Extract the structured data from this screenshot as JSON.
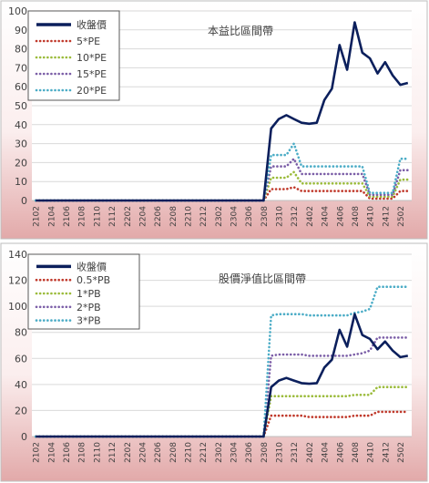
{
  "chart_data": [
    {
      "type": "line",
      "title": "本益比區間帶",
      "xlabel": "",
      "ylabel": "",
      "ylim": [
        0,
        100
      ],
      "yticks": [
        0,
        10,
        20,
        30,
        40,
        50,
        60,
        70,
        80,
        90,
        100
      ],
      "grid": "horizontal",
      "legend_position": "top-left",
      "x_tick_labels": [
        "2102",
        "2104",
        "2106",
        "2108",
        "2110",
        "2112",
        "2202",
        "2204",
        "2206",
        "2208",
        "2210",
        "2212",
        "2302",
        "2304",
        "2306",
        "2308",
        "2310",
        "2312",
        "2402",
        "2404",
        "2406",
        "2408",
        "2410",
        "2412",
        "2502"
      ],
      "x": [
        "2102",
        "2103",
        "2104",
        "2105",
        "2106",
        "2107",
        "2108",
        "2109",
        "2110",
        "2111",
        "2112",
        "2201",
        "2202",
        "2203",
        "2204",
        "2205",
        "2206",
        "2207",
        "2208",
        "2209",
        "2210",
        "2211",
        "2212",
        "2301",
        "2302",
        "2303",
        "2304",
        "2305",
        "2306",
        "2307",
        "2308",
        "2309",
        "2310",
        "2311",
        "2312",
        "2401",
        "2402",
        "2403",
        "2404",
        "2405",
        "2406",
        "2407",
        "2408",
        "2409",
        "2410",
        "2411",
        "2412",
        "2501",
        "2502",
        "2503"
      ],
      "series": [
        {
          "name": "收盤價",
          "color": "#0b1f5c",
          "style": "solid",
          "values": [
            0,
            0,
            0,
            0,
            0,
            0,
            0,
            0,
            0,
            0,
            0,
            0,
            0,
            0,
            0,
            0,
            0,
            0,
            0,
            0,
            0,
            0,
            0,
            0,
            0,
            0,
            0,
            0,
            0,
            0,
            0,
            38,
            43,
            45,
            43,
            41,
            40.5,
            41,
            53,
            59,
            82,
            69,
            94,
            78,
            75,
            67,
            73,
            66,
            61,
            62
          ]
        },
        {
          "name": "5*PE",
          "color": "#c0392b",
          "style": "dotted",
          "values": [
            0,
            0,
            0,
            0,
            0,
            0,
            0,
            0,
            0,
            0,
            0,
            0,
            0,
            0,
            0,
            0,
            0,
            0,
            0,
            0,
            0,
            0,
            0,
            0,
            0,
            0,
            0,
            0,
            0,
            0,
            0,
            6,
            6,
            6,
            7,
            5,
            5,
            5,
            5,
            5,
            5,
            5,
            5,
            5,
            1,
            1,
            1,
            1,
            5,
            5
          ]
        },
        {
          "name": "10*PE",
          "color": "#9bbb3b",
          "style": "dotted",
          "values": [
            0,
            0,
            0,
            0,
            0,
            0,
            0,
            0,
            0,
            0,
            0,
            0,
            0,
            0,
            0,
            0,
            0,
            0,
            0,
            0,
            0,
            0,
            0,
            0,
            0,
            0,
            0,
            0,
            0,
            0,
            0,
            12,
            12,
            12,
            15,
            9,
            9,
            9,
            9,
            9,
            9,
            9,
            9,
            9,
            2,
            2,
            2,
            2,
            11,
            11
          ]
        },
        {
          "name": "15*PE",
          "color": "#7b5ea7",
          "style": "dotted",
          "values": [
            0,
            0,
            0,
            0,
            0,
            0,
            0,
            0,
            0,
            0,
            0,
            0,
            0,
            0,
            0,
            0,
            0,
            0,
            0,
            0,
            0,
            0,
            0,
            0,
            0,
            0,
            0,
            0,
            0,
            0,
            0,
            18,
            18,
            18,
            22,
            14,
            14,
            14,
            14,
            14,
            14,
            14,
            14,
            14,
            3,
            3,
            3,
            3,
            16,
            16
          ]
        },
        {
          "name": "20*PE",
          "color": "#4bacc6",
          "style": "dotted",
          "values": [
            0,
            0,
            0,
            0,
            0,
            0,
            0,
            0,
            0,
            0,
            0,
            0,
            0,
            0,
            0,
            0,
            0,
            0,
            0,
            0,
            0,
            0,
            0,
            0,
            0,
            0,
            0,
            0,
            0,
            0,
            0,
            24,
            24,
            24,
            30,
            18,
            18,
            18,
            18,
            18,
            18,
            18,
            18,
            18,
            4,
            4,
            4,
            4,
            22,
            22
          ]
        }
      ]
    },
    {
      "type": "line",
      "title": "股價淨值比區間帶",
      "xlabel": "",
      "ylabel": "",
      "ylim": [
        0,
        140
      ],
      "yticks": [
        0,
        20,
        40,
        60,
        80,
        100,
        120,
        140
      ],
      "grid": "horizontal",
      "legend_position": "top-left",
      "x_tick_labels": [
        "2102",
        "2104",
        "2106",
        "2108",
        "2110",
        "2112",
        "2202",
        "2204",
        "2206",
        "2208",
        "2210",
        "2212",
        "2302",
        "2304",
        "2306",
        "2308",
        "2310",
        "2312",
        "2402",
        "2404",
        "2406",
        "2408",
        "2410",
        "2412",
        "2502"
      ],
      "x": [
        "2102",
        "2103",
        "2104",
        "2105",
        "2106",
        "2107",
        "2108",
        "2109",
        "2110",
        "2111",
        "2112",
        "2201",
        "2202",
        "2203",
        "2204",
        "2205",
        "2206",
        "2207",
        "2208",
        "2209",
        "2210",
        "2211",
        "2212",
        "2301",
        "2302",
        "2303",
        "2304",
        "2305",
        "2306",
        "2307",
        "2308",
        "2309",
        "2310",
        "2311",
        "2312",
        "2401",
        "2402",
        "2403",
        "2404",
        "2405",
        "2406",
        "2407",
        "2408",
        "2409",
        "2410",
        "2411",
        "2412",
        "2501",
        "2502",
        "2503"
      ],
      "series": [
        {
          "name": "收盤價",
          "color": "#0b1f5c",
          "style": "solid",
          "values": [
            0,
            0,
            0,
            0,
            0,
            0,
            0,
            0,
            0,
            0,
            0,
            0,
            0,
            0,
            0,
            0,
            0,
            0,
            0,
            0,
            0,
            0,
            0,
            0,
            0,
            0,
            0,
            0,
            0,
            0,
            0,
            38,
            43,
            45,
            43,
            41,
            40.5,
            41,
            53,
            59,
            82,
            69,
            94,
            78,
            75,
            67,
            73,
            66,
            61,
            62
          ]
        },
        {
          "name": "0.5*PB",
          "color": "#c0392b",
          "style": "dotted",
          "values": [
            0,
            0,
            0,
            0,
            0,
            0,
            0,
            0,
            0,
            0,
            0,
            0,
            0,
            0,
            0,
            0,
            0,
            0,
            0,
            0,
            0,
            0,
            0,
            0,
            0,
            0,
            0,
            0,
            0,
            0,
            0,
            16,
            16,
            16,
            16,
            16,
            15,
            15,
            15,
            15,
            15,
            15,
            16,
            16,
            16,
            19,
            19,
            19,
            19,
            19
          ]
        },
        {
          "name": "1*PB",
          "color": "#9bbb3b",
          "style": "dotted",
          "values": [
            0,
            0,
            0,
            0,
            0,
            0,
            0,
            0,
            0,
            0,
            0,
            0,
            0,
            0,
            0,
            0,
            0,
            0,
            0,
            0,
            0,
            0,
            0,
            0,
            0,
            0,
            0,
            0,
            0,
            0,
            0,
            31,
            31,
            31,
            31,
            31,
            31,
            31,
            31,
            31,
            31,
            31,
            32,
            32,
            32,
            38,
            38,
            38,
            38,
            38
          ]
        },
        {
          "name": "2*PB",
          "color": "#7b5ea7",
          "style": "dotted",
          "values": [
            0,
            0,
            0,
            0,
            0,
            0,
            0,
            0,
            0,
            0,
            0,
            0,
            0,
            0,
            0,
            0,
            0,
            0,
            0,
            0,
            0,
            0,
            0,
            0,
            0,
            0,
            0,
            0,
            0,
            0,
            0,
            62,
            63,
            63,
            63,
            63,
            62,
            62,
            62,
            62,
            62,
            62,
            63,
            64,
            66,
            76,
            76,
            76,
            76,
            76
          ]
        },
        {
          "name": "3*PB",
          "color": "#4bacc6",
          "style": "dotted",
          "values": [
            0,
            0,
            0,
            0,
            0,
            0,
            0,
            0,
            0,
            0,
            0,
            0,
            0,
            0,
            0,
            0,
            0,
            0,
            0,
            0,
            0,
            0,
            0,
            0,
            0,
            0,
            0,
            0,
            0,
            0,
            0,
            93,
            94,
            94,
            94,
            94,
            93,
            93,
            93,
            93,
            93,
            93,
            95,
            96,
            98,
            115,
            115,
            115,
            115,
            115
          ]
        }
      ]
    }
  ]
}
